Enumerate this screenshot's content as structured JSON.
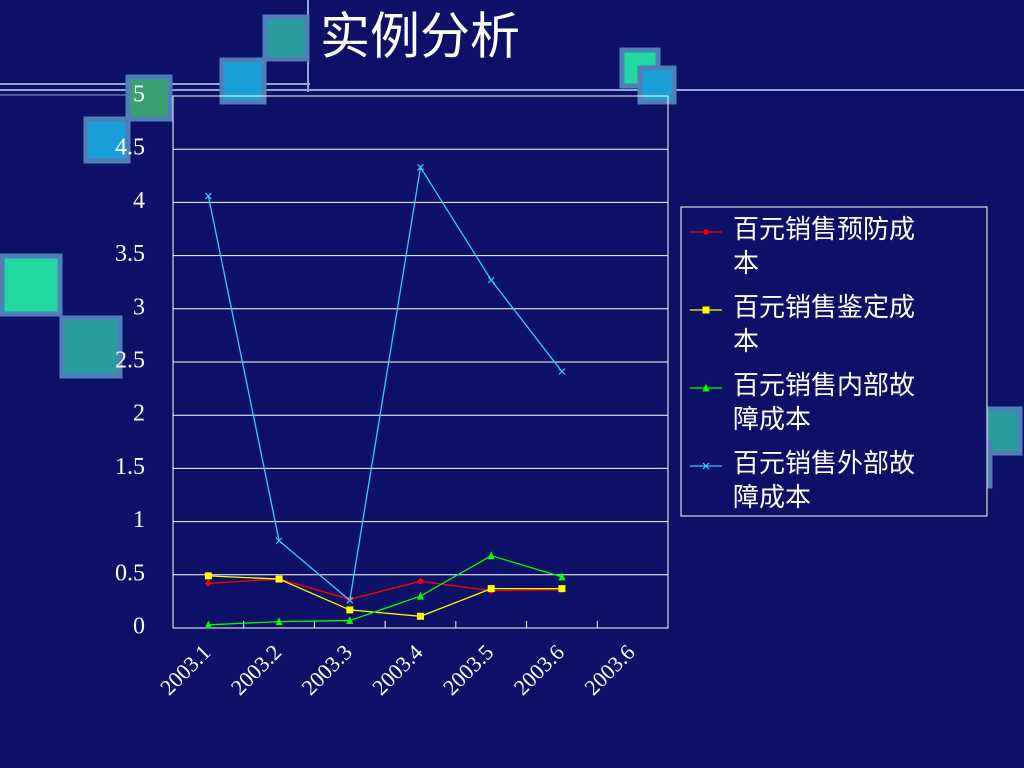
{
  "chart_data": {
    "type": "line",
    "title": "实例分析",
    "categories": [
      "2003.1",
      "2003.2",
      "2003.3",
      "2003.4",
      "2003.5",
      "2003.6",
      "2003.6"
    ],
    "series": [
      {
        "name": "百元销售预防成本",
        "color": "#ff0000",
        "marker": "diamond",
        "values": [
          0.42,
          0.46,
          0.27,
          0.44,
          0.35,
          0.36,
          null
        ]
      },
      {
        "name": "百元销售鉴定成本",
        "color": "#ffff00",
        "marker": "square",
        "values": [
          0.49,
          0.46,
          0.17,
          0.11,
          0.37,
          0.37,
          null
        ]
      },
      {
        "name": "百元销售内部故障成本",
        "color": "#00ff00",
        "marker": "triangle",
        "values": [
          0.03,
          0.06,
          0.07,
          0.3,
          0.68,
          0.48,
          null
        ]
      },
      {
        "name": "百元销售外部故障成本",
        "color": "#33ccff",
        "marker": "x",
        "values": [
          4.06,
          0.82,
          0.26,
          4.33,
          3.27,
          2.41,
          null
        ]
      }
    ],
    "ylim": [
      0,
      5
    ],
    "yticks": [
      0,
      0.5,
      1,
      1.5,
      2,
      2.5,
      3,
      3.5,
      4,
      4.5,
      5
    ],
    "grid": true,
    "legend": "right"
  }
}
